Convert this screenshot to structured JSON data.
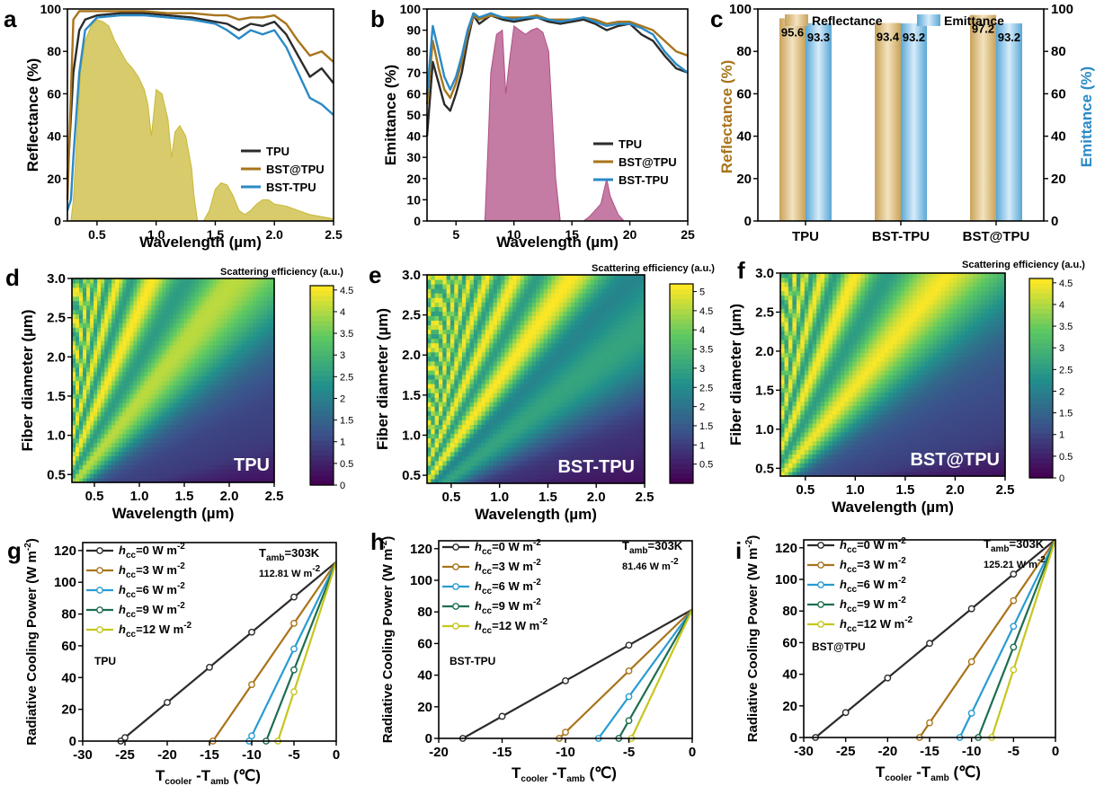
{
  "panel_letters": [
    "a",
    "b",
    "c",
    "d",
    "e",
    "f",
    "g",
    "h",
    "i"
  ],
  "colors": {
    "tpu": "#2b2b2b",
    "bst_at": "#a8741a",
    "bst_tpu": "#2a8ac6",
    "solar": "#c9b93a",
    "atm": "#b04f86",
    "refl_bar": "#c9a25a",
    "emit_bar": "#5aa7d6",
    "g0": "#2b2b2b",
    "g3": "#a8741a",
    "g6": "#2a9bd2",
    "g9": "#1d6e4f",
    "g12": "#c6c61e"
  },
  "chart_data": [
    {
      "panel": "a",
      "type": "line",
      "xlabel": "Wavelength (µm)",
      "ylabel": "Reflectance (%)",
      "xlim": [
        0.25,
        2.5
      ],
      "ylim": [
        0,
        100
      ],
      "xticks": [
        "0.5",
        "1.0",
        "1.5",
        "2.0",
        "2.5"
      ],
      "yticks": [
        "0",
        "20",
        "40",
        "60",
        "80",
        "100"
      ],
      "legend": [
        "TPU",
        "BST@TPU",
        "BST-TPU"
      ],
      "series": [
        {
          "name": "TPU",
          "x": [
            0.25,
            0.3,
            0.35,
            0.4,
            0.5,
            0.7,
            0.9,
            1.1,
            1.3,
            1.5,
            1.6,
            1.7,
            1.8,
            1.9,
            2.0,
            2.1,
            2.2,
            2.3,
            2.4,
            2.5
          ],
          "y": [
            20,
            70,
            90,
            95,
            97,
            98,
            98,
            97,
            96,
            94,
            93,
            90,
            93,
            92,
            94,
            88,
            78,
            68,
            72,
            65
          ]
        },
        {
          "name": "BST@TPU",
          "x": [
            0.25,
            0.28,
            0.3,
            0.35,
            0.5,
            0.7,
            0.9,
            1.1,
            1.3,
            1.5,
            1.6,
            1.7,
            1.8,
            1.9,
            2.0,
            2.1,
            2.2,
            2.3,
            2.4,
            2.5
          ],
          "y": [
            10,
            60,
            95,
            99,
            99,
            99,
            99,
            98,
            98,
            97,
            97,
            95,
            96,
            96,
            97,
            93,
            85,
            78,
            80,
            75
          ]
        },
        {
          "name": "BST-TPU",
          "x": [
            0.25,
            0.28,
            0.3,
            0.35,
            0.4,
            0.5,
            0.7,
            0.9,
            1.1,
            1.3,
            1.5,
            1.6,
            1.7,
            1.8,
            1.9,
            2.0,
            2.1,
            2.2,
            2.3,
            2.4,
            2.5
          ],
          "y": [
            5,
            10,
            30,
            70,
            90,
            96,
            97,
            97,
            96,
            95,
            93,
            90,
            86,
            90,
            88,
            90,
            82,
            70,
            58,
            55,
            50
          ]
        },
        {
          "name": "",
          "x": [
            0.28,
            0.3,
            0.33,
            0.36,
            0.4,
            0.45,
            0.5,
            0.55,
            0.6,
            0.65,
            0.7,
            0.75,
            0.8,
            0.85,
            0.9,
            0.93,
            0.96,
            1.0,
            1.05,
            1.1,
            1.13,
            1.16,
            1.2,
            1.25,
            1.3,
            1.32,
            1.35,
            1.4,
            1.45,
            1.5,
            1.55,
            1.6,
            1.65,
            1.7,
            1.75,
            1.8,
            1.85,
            1.9,
            1.95,
            2.0,
            2.1,
            2.2,
            2.3,
            2.4,
            2.5
          ],
          "y": [
            0,
            10,
            40,
            70,
            85,
            92,
            95,
            94,
            92,
            85,
            80,
            75,
            72,
            68,
            62,
            55,
            40,
            62,
            60,
            48,
            30,
            42,
            45,
            40,
            25,
            12,
            0,
            0,
            5,
            15,
            18,
            17,
            12,
            5,
            3,
            5,
            8,
            10,
            10,
            8,
            7,
            5,
            3,
            2,
            1
          ]
        }
      ]
    },
    {
      "panel": "b",
      "type": "line",
      "xlabel": "Wavelength (µm)",
      "ylabel": "Emittance (%)",
      "xlim": [
        2.5,
        25
      ],
      "ylim": [
        0,
        100
      ],
      "xticks": [
        "5",
        "10",
        "15",
        "20",
        "25"
      ],
      "yticks": [
        "0",
        "10",
        "20",
        "30",
        "40",
        "50",
        "60",
        "70",
        "80",
        "90",
        "100"
      ],
      "legend": [
        "TPU",
        "BST@TPU",
        "BST-TPU"
      ],
      "series": [
        {
          "name": "TPU",
          "x": [
            2.5,
            3,
            3.5,
            4,
            4.5,
            5,
            5.5,
            6,
            6.5,
            7,
            7.5,
            8,
            9,
            10,
            11,
            12,
            13,
            14,
            15,
            16,
            17,
            18,
            19,
            20,
            21,
            22,
            23,
            24,
            25
          ],
          "y": [
            40,
            75,
            65,
            55,
            52,
            60,
            70,
            85,
            97,
            93,
            95,
            97,
            95,
            94,
            95,
            96,
            94,
            93,
            94,
            95,
            93,
            90,
            92,
            93,
            88,
            85,
            78,
            72,
            70
          ]
        },
        {
          "name": "BST@TPU",
          "x": [
            2.5,
            3,
            3.5,
            4,
            4.5,
            5,
            5.5,
            6,
            6.5,
            7,
            7.5,
            8,
            9,
            10,
            11,
            12,
            13,
            14,
            15,
            16,
            17,
            18,
            19,
            20,
            21,
            22,
            23,
            24,
            25
          ],
          "y": [
            55,
            85,
            72,
            62,
            58,
            65,
            75,
            88,
            97,
            95,
            96,
            97,
            96,
            96,
            96,
            97,
            95,
            95,
            95,
            96,
            95,
            93,
            94,
            94,
            92,
            90,
            85,
            80,
            78
          ]
        },
        {
          "name": "BST-TPU",
          "x": [
            2.5,
            3,
            3.5,
            4,
            4.5,
            5,
            5.5,
            6,
            6.5,
            7,
            7.5,
            8,
            9,
            10,
            11,
            12,
            13,
            14,
            15,
            16,
            17,
            18,
            19,
            20,
            21,
            22,
            23,
            24,
            25
          ],
          "y": [
            60,
            92,
            80,
            68,
            62,
            68,
            78,
            90,
            98,
            96,
            97,
            98,
            96,
            95,
            96,
            96,
            95,
            94,
            95,
            96,
            94,
            92,
            93,
            93,
            91,
            88,
            80,
            74,
            70
          ]
        },
        {
          "name": "",
          "x": [
            7.5,
            7.8,
            8,
            8.5,
            9,
            9.3,
            9.6,
            10,
            10.5,
            11,
            11.5,
            12,
            12.5,
            13,
            13.3,
            13.6,
            14,
            16,
            16.5,
            17,
            17.5,
            17.8,
            18,
            18.3,
            18.6,
            19,
            19.5
          ],
          "y": [
            0,
            40,
            70,
            88,
            90,
            60,
            75,
            92,
            90,
            88,
            90,
            91,
            89,
            80,
            50,
            20,
            0,
            0,
            2,
            5,
            8,
            15,
            20,
            12,
            8,
            3,
            0
          ]
        }
      ]
    },
    {
      "panel": "c",
      "type": "bar",
      "categories": [
        "TPU",
        "BST-TPU",
        "BST@TPU"
      ],
      "ylabel": "Reflectance (%)",
      "ylabel_right": "Emittance (%)",
      "ylim": [
        0,
        100
      ],
      "yticks": [
        "0",
        "20",
        "40",
        "60",
        "80",
        "100"
      ],
      "series": [
        {
          "name": "Reflectance",
          "values": [
            95.6,
            93.4,
            97.2
          ],
          "labels": [
            "95.6",
            "93.4",
            "97.2"
          ]
        },
        {
          "name": "Emittance",
          "values": [
            93.3,
            93.2,
            93.2
          ],
          "labels": [
            "93.3",
            "93.2",
            "93.2"
          ]
        }
      ]
    },
    {
      "panel": "d",
      "type": "heatmap",
      "label": "TPU",
      "xlabel": "Wavelength (µm)",
      "ylabel": "Fiber diameter (µm)",
      "xlim": [
        0.25,
        2.5
      ],
      "ylim": [
        0.4,
        3.0
      ],
      "xticks": [
        "0.5",
        "1.0",
        "1.5",
        "2.0",
        "2.5"
      ],
      "yticks": [
        "0.5",
        "1.0",
        "1.5",
        "2.0",
        "2.5",
        "3.0"
      ],
      "colorbar_title": "Scattering efficiency (a.u.)",
      "colorbar_ticks": [
        "0",
        "0.5",
        "1",
        "1.5",
        "2",
        "2.5",
        "3",
        "3.5",
        "4",
        "4.5"
      ],
      "cmax": 4.6
    },
    {
      "panel": "e",
      "type": "heatmap",
      "label": "BST-TPU",
      "xlabel": "Wavelength (µm)",
      "ylabel": "Fiber diameter (µm)",
      "xlim": [
        0.25,
        2.5
      ],
      "ylim": [
        0.4,
        3.0
      ],
      "xticks": [
        "0.5",
        "1.0",
        "1.5",
        "2.0",
        "2.5"
      ],
      "yticks": [
        "0.5",
        "1.0",
        "1.5",
        "2.0",
        "2.5",
        "3.0"
      ],
      "colorbar_title": "Scattering efficiency (a.u.)",
      "colorbar_ticks": [
        "0.5",
        "1",
        "1.5",
        "2",
        "2.5",
        "3",
        "3.5",
        "4",
        "4.5",
        "5"
      ],
      "cmax": 5.2
    },
    {
      "panel": "f",
      "type": "heatmap",
      "label": "BST@TPU",
      "xlabel": "Wavelength (µm)",
      "ylabel": "Fiber diameter (µm)",
      "xlim": [
        0.25,
        2.5
      ],
      "ylim": [
        0.4,
        3.0
      ],
      "xticks": [
        "0.5",
        "1.0",
        "1.5",
        "2.0",
        "2.5"
      ],
      "yticks": [
        "0.5",
        "1.0",
        "1.5",
        "2.0",
        "2.5",
        "3.0"
      ],
      "colorbar_title": "Scattering efficiency (a.u.)",
      "colorbar_ticks": [
        "0",
        "0.5",
        "1",
        "1.5",
        "2",
        "2.5",
        "3",
        "3.5",
        "4",
        "4.5"
      ],
      "cmax": 4.6
    },
    {
      "panel": "g",
      "type": "line",
      "xlabel": "T",
      "ylabel": "Radiative Cooling Power (W m",
      "xlim": [
        -30,
        0
      ],
      "ylim": [
        0,
        125
      ],
      "xticks": [
        "-30",
        "-25",
        "-20",
        "-15",
        "-10",
        "-5",
        "0"
      ],
      "yticks": [
        "0",
        "20",
        "40",
        "60",
        "80",
        "100",
        "120"
      ],
      "annotation_tamb": "T",
      "annotation_power": "112.81 W m",
      "sample": "TPU",
      "p0": 112.81,
      "legend": [
        "=0  W m",
        "=3  W m",
        "=6  W m",
        "=9  W m",
        "=12 W m"
      ],
      "series": [
        {
          "name": "hcc=0",
          "x": [
            -25.5,
            0
          ],
          "y": [
            0,
            112.81
          ],
          "markers": [
            -25,
            -20,
            -15,
            -10,
            -5
          ]
        },
        {
          "name": "hcc=3",
          "x": [
            -14.6,
            0
          ],
          "y": [
            0,
            112.81
          ],
          "markers": [
            -10,
            -5
          ]
        },
        {
          "name": "hcc=6",
          "x": [
            -10.3,
            0
          ],
          "y": [
            0,
            112.81
          ],
          "markers": [
            -10,
            -5
          ]
        },
        {
          "name": "hcc=9",
          "x": [
            -8.3,
            0
          ],
          "y": [
            0,
            112.81
          ],
          "markers": [
            -5
          ]
        },
        {
          "name": "hcc=12",
          "x": [
            -6.9,
            0
          ],
          "y": [
            0,
            112.81
          ],
          "markers": [
            -5
          ]
        }
      ]
    },
    {
      "panel": "h",
      "type": "line",
      "xlabel": "T",
      "ylabel": "Radiative Cooling Power (W m",
      "xlim": [
        -20,
        0
      ],
      "ylim": [
        0,
        125
      ],
      "xticks": [
        "-20",
        "-15",
        "-10",
        "-5",
        "0"
      ],
      "yticks": [
        "0",
        "20",
        "40",
        "60",
        "80",
        "100",
        "120"
      ],
      "annotation_tamb": "T",
      "annotation_power": "81.46 W m",
      "sample": "BST-TPU",
      "p0": 81.46,
      "legend": [
        "=0  W m",
        "=3  W m",
        "=6  W m",
        "=9  W m",
        "=12 W m"
      ],
      "series": [
        {
          "name": "hcc=0",
          "x": [
            -18.1,
            0
          ],
          "y": [
            0,
            81.46
          ],
          "markers": [
            -15,
            -10,
            -5
          ]
        },
        {
          "name": "hcc=3",
          "x": [
            -10.5,
            0
          ],
          "y": [
            0,
            81.46
          ],
          "markers": [
            -10,
            -5
          ]
        },
        {
          "name": "hcc=6",
          "x": [
            -7.4,
            0
          ],
          "y": [
            0,
            81.46
          ],
          "markers": [
            -5
          ]
        },
        {
          "name": "hcc=9",
          "x": [
            -5.8,
            0
          ],
          "y": [
            0,
            81.46
          ],
          "markers": [
            -5
          ]
        },
        {
          "name": "hcc=12",
          "x": [
            -4.8,
            0
          ],
          "y": [
            0,
            81.46
          ],
          "markers": []
        }
      ]
    },
    {
      "panel": "i",
      "type": "line",
      "xlabel": "T",
      "ylabel": "Radiative Cooling Power (W m",
      "xlim": [
        -30,
        0
      ],
      "ylim": [
        0,
        125
      ],
      "xticks": [
        "-30",
        "-25",
        "-20",
        "-15",
        "-10",
        "-5",
        "0"
      ],
      "yticks": [
        "0",
        "20",
        "40",
        "60",
        "80",
        "100",
        "120"
      ],
      "annotation_tamb": "T",
      "annotation_power": "125.21 W m",
      "sample": "BST@TPU",
      "p0": 125.21,
      "legend": [
        "=0  W m",
        "=3  W m",
        "=6  W m",
        "=9  W m",
        "=12 W m"
      ],
      "series": [
        {
          "name": "hcc=0",
          "x": [
            -28.6,
            0
          ],
          "y": [
            0,
            125.21
          ],
          "markers": [
            -25,
            -20,
            -15,
            -10,
            -5
          ]
        },
        {
          "name": "hcc=3",
          "x": [
            -16.2,
            0
          ],
          "y": [
            0,
            125.21
          ],
          "markers": [
            -15,
            -10,
            -5
          ]
        },
        {
          "name": "hcc=6",
          "x": [
            -11.4,
            0
          ],
          "y": [
            0,
            125.21
          ],
          "markers": [
            -10,
            -5
          ]
        },
        {
          "name": "hcc=9",
          "x": [
            -9.2,
            0
          ],
          "y": [
            0,
            125.21
          ],
          "markers": [
            -5
          ]
        },
        {
          "name": "hcc=12",
          "x": [
            -7.6,
            0
          ],
          "y": [
            0,
            125.21
          ],
          "markers": [
            -5
          ]
        }
      ]
    }
  ]
}
